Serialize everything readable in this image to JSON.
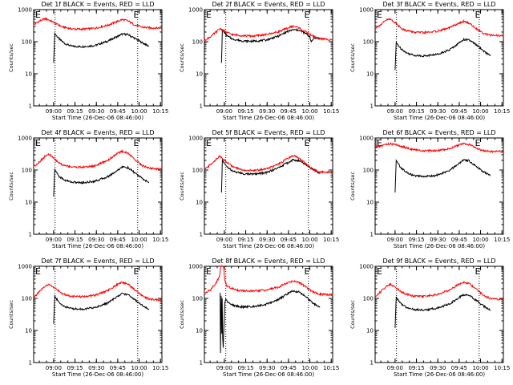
{
  "chart_data": [
    {
      "type": "line",
      "title": "Det 1f BLACK = Events, RED = LLD",
      "xlabel": "Start Time (26-Dec-06 08:46:00)",
      "ylabel": "Counts/sec",
      "x_tick_labels": [
        "09:00",
        "09:15",
        "09:30",
        "09:45",
        "10:00",
        "10:15"
      ],
      "y_tick_labels": [
        "1",
        "10",
        "100",
        "1000"
      ],
      "ylim": [
        1,
        1000
      ],
      "y_scale": "log",
      "x_range_minutes": [
        0,
        90
      ],
      "vlines_minutes": [
        15,
        73
      ],
      "annotations": [
        "E",
        "E"
      ],
      "series": [
        {
          "color": "#000000",
          "x": [
            14,
            14.8,
            15.5,
            18,
            22,
            27,
            34,
            43,
            52,
            58,
            62,
            66,
            71,
            76,
            81
          ],
          "y": [
            22,
            185,
            165,
            120,
            87,
            72,
            70,
            76,
            104,
            140,
            172,
            168,
            128,
            94,
            72
          ]
        },
        {
          "color": "#ff0000",
          "x": [
            0,
            4,
            8,
            11,
            15,
            20,
            27,
            34,
            43,
            52,
            58,
            62,
            66,
            71,
            76,
            81,
            86,
            90
          ],
          "y": [
            335,
            440,
            520,
            470,
            380,
            290,
            250,
            245,
            262,
            325,
            415,
            490,
            450,
            330,
            285,
            270,
            268,
            268
          ]
        }
      ]
    },
    {
      "type": "line",
      "title": "Det 2f BLACK = Events, RED = LLD",
      "xlabel": "Start Time (26-Dec-06 08:46:00)",
      "ylabel": "Counts/sec",
      "x_tick_labels": [
        "09:00",
        "09:15",
        "09:30",
        "09:45",
        "10:00",
        "10:15"
      ],
      "y_tick_labels": [
        "1",
        "10",
        "100",
        "1000"
      ],
      "ylim": [
        1,
        1000
      ],
      "y_scale": "log",
      "x_range_minutes": [
        0,
        90
      ],
      "vlines_minutes": [
        15,
        73
      ],
      "annotations": [
        "E",
        "E"
      ],
      "series": [
        {
          "color": "#000000",
          "x": [
            12,
            12.6,
            13.5,
            16,
            20,
            27,
            34,
            43,
            52,
            58,
            62,
            66,
            71,
            74,
            75,
            77,
            81
          ],
          "y": [
            22,
            230,
            210,
            150,
            120,
            105,
            103,
            112,
            150,
            205,
            235,
            230,
            180,
            145,
            95,
            135,
            125
          ]
        },
        {
          "color": "#ff0000",
          "x": [
            0,
            4,
            8,
            11,
            15,
            20,
            27,
            34,
            43,
            52,
            58,
            62,
            66,
            71,
            76,
            81,
            86,
            90
          ],
          "y": [
            110,
            140,
            195,
            260,
            200,
            165,
            155,
            150,
            165,
            205,
            260,
            305,
            275,
            205,
            150,
            125,
            118,
            118
          ]
        }
      ]
    },
    {
      "type": "line",
      "title": "Det 3f BLACK = Events, RED = LLD",
      "xlabel": "Start Time (26-Dec-06 08:46:00)",
      "ylabel": "Counts/sec",
      "x_tick_labels": [
        "09:00",
        "09:15",
        "09:30",
        "09:45",
        "10:00",
        "10:15"
      ],
      "y_tick_labels": [
        "1",
        "10",
        "100",
        "1000"
      ],
      "ylim": [
        1,
        1000
      ],
      "y_scale": "log",
      "x_range_minutes": [
        0,
        90
      ],
      "vlines_minutes": [
        15,
        73
      ],
      "annotations": [
        "E",
        "E"
      ],
      "series": [
        {
          "color": "#000000",
          "x": [
            14,
            14.8,
            15.5,
            18,
            22,
            27,
            34,
            43,
            52,
            58,
            62,
            66,
            71,
            76,
            81
          ],
          "y": [
            13,
            95,
            85,
            62,
            45,
            38,
            36,
            40,
            55,
            85,
            118,
            112,
            80,
            52,
            36
          ]
        },
        {
          "color": "#ff0000",
          "x": [
            0,
            4,
            8,
            11,
            15,
            20,
            27,
            34,
            43,
            52,
            58,
            62,
            66,
            71,
            76,
            81,
            86,
            90
          ],
          "y": [
            265,
            340,
            480,
            500,
            360,
            235,
            200,
            190,
            210,
            270,
            360,
            430,
            380,
            255,
            185,
            160,
            155,
            155
          ]
        }
      ]
    },
    {
      "type": "line",
      "title": "Det 4f BLACK = Events, RED = LLD",
      "xlabel": "Start Time (26-Dec-06 08:46:00)",
      "ylabel": "Counts/sec",
      "x_tick_labels": [
        "09:00",
        "09:15",
        "09:30",
        "09:45",
        "10:00",
        "10:15"
      ],
      "y_tick_labels": [
        "1",
        "10",
        "100",
        "1000"
      ],
      "ylim": [
        1,
        1000
      ],
      "y_scale": "log",
      "x_range_minutes": [
        0,
        90
      ],
      "vlines_minutes": [
        15,
        73
      ],
      "annotations": [
        "E",
        "E"
      ],
      "series": [
        {
          "color": "#000000",
          "x": [
            14,
            14.8,
            15.5,
            18,
            22,
            27,
            34,
            43,
            52,
            58,
            62,
            66,
            71,
            76,
            81
          ],
          "y": [
            15,
            105,
            92,
            62,
            48,
            42,
            40,
            45,
            62,
            92,
            125,
            118,
            82,
            55,
            40
          ]
        },
        {
          "color": "#ff0000",
          "x": [
            0,
            4,
            8,
            11,
            15,
            20,
            27,
            34,
            43,
            52,
            58,
            62,
            66,
            71,
            76,
            81,
            86,
            90
          ],
          "y": [
            130,
            180,
            270,
            310,
            210,
            145,
            125,
            122,
            135,
            200,
            315,
            385,
            340,
            215,
            140,
            115,
            108,
            108
          ]
        }
      ]
    },
    {
      "type": "line",
      "title": "Det 5f BLACK = Events, RED = LLD",
      "xlabel": "Start Time (26-Dec-06 08:46:00)",
      "ylabel": "Counts/sec",
      "x_tick_labels": [
        "09:00",
        "09:15",
        "09:30",
        "09:45",
        "10:00",
        "10:15"
      ],
      "y_tick_labels": [
        "1",
        "10",
        "100",
        "1000"
      ],
      "ylim": [
        1,
        1000
      ],
      "y_scale": "log",
      "x_range_minutes": [
        0,
        90
      ],
      "vlines_minutes": [
        15,
        73
      ],
      "annotations": [
        "E",
        "E"
      ],
      "series": [
        {
          "color": "#000000",
          "x": [
            12,
            12.6,
            13.5,
            16,
            20,
            27,
            34,
            43,
            52,
            58,
            62,
            66,
            71,
            76,
            81
          ],
          "y": [
            20,
            200,
            180,
            122,
            92,
            77,
            74,
            82,
            118,
            165,
            205,
            198,
            150,
            105,
            80
          ]
        },
        {
          "color": "#ff0000",
          "x": [
            0,
            4,
            8,
            11,
            15,
            20,
            27,
            34,
            43,
            52,
            58,
            62,
            66,
            71,
            76,
            81,
            86,
            90
          ],
          "y": [
            100,
            145,
            210,
            270,
            190,
            125,
            100,
            96,
            108,
            150,
            225,
            280,
            250,
            160,
            105,
            88,
            86,
            86
          ]
        }
      ]
    },
    {
      "type": "line",
      "title": "Det 6f BLACK = Events, RED = LLD",
      "xlabel": "Start Time (26-Dec-06 08:46:00)",
      "ylabel": "Counts/sec",
      "x_tick_labels": [
        "09:00",
        "09:15",
        "09:30",
        "09:45",
        "10:00",
        "10:15"
      ],
      "y_tick_labels": [
        "1",
        "10",
        "100",
        "1000"
      ],
      "ylim": [
        1,
        1000
      ],
      "y_scale": "log",
      "x_range_minutes": [
        0,
        90
      ],
      "vlines_minutes": [],
      "annotations": [
        "E",
        "E"
      ],
      "series": [
        {
          "color": "#000000",
          "x": [
            14,
            14.8,
            15.5,
            18,
            22,
            27,
            34,
            43,
            52,
            58,
            62,
            66,
            71,
            76,
            81
          ],
          "y": [
            20,
            200,
            175,
            118,
            85,
            67,
            62,
            68,
            95,
            150,
            205,
            195,
            130,
            88,
            66
          ]
        },
        {
          "color": "#ff0000",
          "x": [
            0,
            4,
            8,
            11,
            15,
            20,
            27,
            34,
            43,
            52,
            58,
            62,
            66,
            71,
            76,
            81,
            86,
            90
          ],
          "y": [
            520,
            560,
            640,
            660,
            610,
            520,
            430,
            395,
            400,
            460,
            580,
            670,
            620,
            480,
            400,
            380,
            378,
            378
          ]
        }
      ]
    },
    {
      "type": "line",
      "title": "Det 7f BLACK = Events, RED = LLD",
      "xlabel": "Start Time (26-Dec-06 08:46:00)",
      "ylabel": "Counts/sec",
      "x_tick_labels": [
        "09:00",
        "09:15",
        "09:30",
        "09:45",
        "10:00",
        "10:15"
      ],
      "y_tick_labels": [
        "1",
        "10",
        "100",
        "1000"
      ],
      "ylim": [
        1,
        1000
      ],
      "y_scale": "log",
      "x_range_minutes": [
        0,
        90
      ],
      "vlines_minutes": [
        15,
        73
      ],
      "annotations": [
        "E",
        "E"
      ],
      "series": [
        {
          "color": "#000000",
          "x": [
            14,
            14.8,
            15.5,
            18,
            22,
            27,
            34,
            43,
            52,
            58,
            62,
            66,
            71,
            76,
            81
          ],
          "y": [
            16,
            118,
            105,
            72,
            55,
            48,
            46,
            52,
            72,
            108,
            140,
            133,
            92,
            62,
            45
          ]
        },
        {
          "color": "#ff0000",
          "x": [
            0,
            4,
            8,
            11,
            15,
            20,
            27,
            34,
            43,
            52,
            58,
            62,
            66,
            71,
            76,
            81,
            86,
            90
          ],
          "y": [
            105,
            160,
            235,
            275,
            205,
            140,
            115,
            112,
            125,
            175,
            260,
            315,
            285,
            185,
            120,
            95,
            90,
            90
          ]
        }
      ]
    },
    {
      "type": "line",
      "title": "Det 8f BLACK = Events, RED = LLD",
      "xlabel": "Start Time (26-Dec-06 08:46:00)",
      "ylabel": "Counts/sec",
      "x_tick_labels": [
        "09:00",
        "09:15",
        "09:30",
        "09:45",
        "10:00",
        "10:15"
      ],
      "y_tick_labels": [
        "1",
        "10",
        "100",
        "1000"
      ],
      "ylim": [
        1,
        1000
      ],
      "y_scale": "log",
      "x_range_minutes": [
        0,
        90
      ],
      "vlines_minutes": [
        15,
        73
      ],
      "annotations": [
        "E",
        "E"
      ],
      "series": [
        {
          "color": "#000000",
          "x": [
            11,
            11.3,
            11.8,
            12.2,
            12.5,
            12.8,
            13.2,
            14.3,
            15,
            16,
            18,
            22,
            27,
            34,
            43,
            52,
            58,
            62,
            66,
            71,
            76,
            81
          ],
          "y": [
            150,
            2,
            120,
            8,
            100,
            6,
            3,
            70,
            95,
            82,
            66,
            58,
            54,
            56,
            65,
            92,
            135,
            170,
            160,
            115,
            72,
            52
          ]
        },
        {
          "color": "#ff0000",
          "x": [
            0,
            4,
            8,
            10.5,
            11.5,
            13.5,
            14.3,
            15.5,
            18,
            22,
            27,
            34,
            43,
            52,
            58,
            62,
            66,
            71,
            76,
            81,
            86,
            90
          ],
          "y": [
            140,
            180,
            300,
            460,
            1000,
            1000,
            380,
            250,
            215,
            185,
            170,
            168,
            180,
            225,
            300,
            350,
            320,
            230,
            160,
            135,
            130,
            130
          ]
        }
      ]
    },
    {
      "type": "line",
      "title": "Det 9f BLACK = Events, RED = LLD",
      "xlabel": "Start Time (26-Dec-06 08:46:00)",
      "ylabel": "Counts/sec",
      "x_tick_labels": [
        "09:00",
        "09:15",
        "09:30",
        "09:45",
        "10:00",
        "10:15"
      ],
      "y_tick_labels": [
        "1",
        "10",
        "100",
        "1000"
      ],
      "ylim": [
        1,
        1000
      ],
      "y_scale": "log",
      "x_range_minutes": [
        0,
        90
      ],
      "vlines_minutes": [
        15,
        73
      ],
      "annotations": [
        "E",
        "E"
      ],
      "series": [
        {
          "color": "#000000",
          "x": [
            14,
            14.8,
            15.5,
            18,
            22,
            27,
            34,
            43,
            52,
            58,
            62,
            66,
            71,
            76,
            81
          ],
          "y": [
            12,
            112,
            98,
            68,
            52,
            45,
            43,
            49,
            66,
            100,
            130,
            125,
            86,
            58,
            42
          ]
        },
        {
          "color": "#ff0000",
          "x": [
            0,
            4,
            8,
            11,
            15,
            20,
            27,
            34,
            43,
            52,
            58,
            62,
            66,
            71,
            76,
            81,
            86,
            90
          ],
          "y": [
            110,
            165,
            240,
            280,
            210,
            145,
            118,
            115,
            128,
            180,
            265,
            320,
            290,
            190,
            125,
            98,
            93,
            93
          ]
        }
      ]
    }
  ]
}
